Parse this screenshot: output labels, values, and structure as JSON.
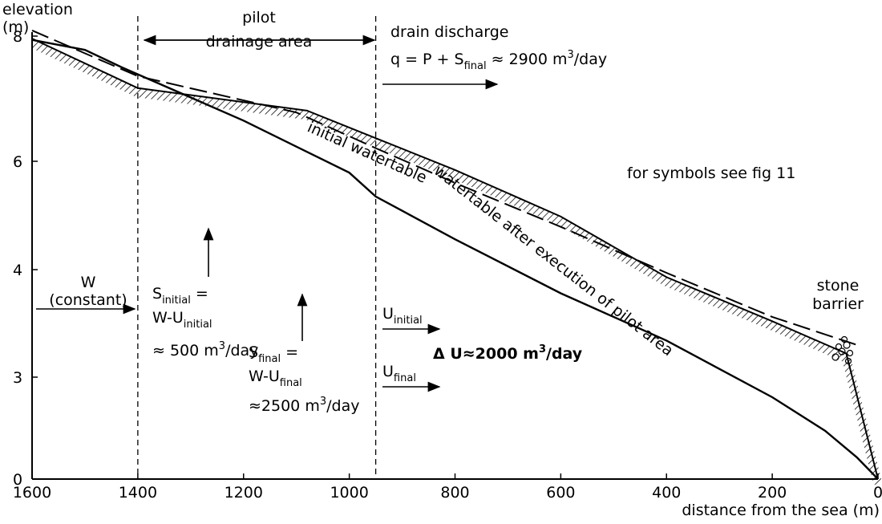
{
  "chart_data": {
    "type": "line",
    "y_label": [
      "elevation",
      "(m)"
    ],
    "x_label": "distance from the sea (m)",
    "xlim": [
      1600,
      0
    ],
    "xticks": [
      1600,
      1400,
      1200,
      1000,
      800,
      600,
      400,
      200,
      0
    ],
    "ylim": [
      0,
      8
    ],
    "yticks": [
      0,
      3,
      4,
      6,
      8
    ],
    "vlines": [
      1400,
      950
    ],
    "series": [
      {
        "style": "hatched",
        "color": "#000",
        "x": [
          1600,
          1400,
          1080,
          950,
          800,
          600,
          400,
          200,
          60,
          0
        ],
        "values": [
          7.96,
          7.17,
          6.81,
          6.37,
          5.84,
          4.98,
          3.93,
          3.52,
          3.22,
          0
        ]
      },
      {
        "style": "dashed",
        "color": "#000",
        "x": [
          1600,
          1400,
          1100,
          950,
          800,
          600,
          400,
          200,
          40
        ],
        "values": [
          8.09,
          7.36,
          6.78,
          6.21,
          5.6,
          4.79,
          3.97,
          3.56,
          3.3
        ]
      },
      {
        "style": "solid",
        "color": "#000",
        "x": [
          1600,
          1500,
          1430,
          1200,
          1000,
          950,
          800,
          600,
          400,
          200,
          100,
          40,
          0
        ],
        "values": [
          7.94,
          7.78,
          7.5,
          6.65,
          5.79,
          5.35,
          4.56,
          3.78,
          3.34,
          2.41,
          1.42,
          0.64,
          0
        ]
      }
    ],
    "annotations": [
      [
        "pilot"
      ],
      [
        "drainage area"
      ],
      [
        "drain discharge"
      ],
      [
        "q = P + S",
        "final",
        " ≈ 2900 m",
        "3",
        "/day"
      ],
      [
        "initial watertable"
      ],
      [
        "watertable after execution of pilot area"
      ],
      [
        "for symbols see fig 11"
      ],
      [
        "W"
      ],
      [
        "(constant)"
      ],
      [
        "S",
        "initial",
        " ="
      ],
      [
        "W-U",
        "initial"
      ],
      [
        "≈ 500 m",
        "3",
        "/day"
      ],
      [
        "S",
        "final",
        " ="
      ],
      [
        "W-U",
        "final"
      ],
      [
        "≈2500 m",
        "3",
        "/day"
      ],
      [
        "U",
        "initial"
      ],
      [
        "U",
        "final"
      ],
      [
        "Δ U≈2000 m",
        "3",
        "/day"
      ],
      [
        "stone"
      ],
      [
        "barrier"
      ]
    ]
  }
}
